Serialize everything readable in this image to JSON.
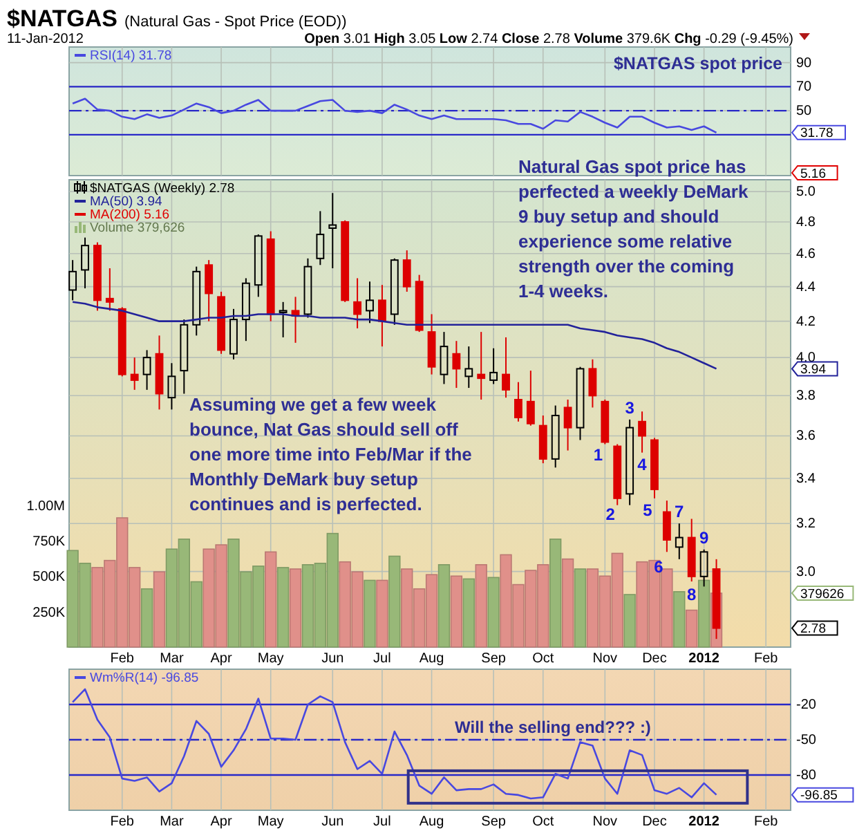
{
  "chart_data": [
    {
      "type": "line",
      "title": "$NATGAS",
      "subtitle": "(Natural Gas - Spot Price (EOD))",
      "annotations": [
        "11-Jan-2012",
        "Open 3.01 High 3.05 Low 2.74 Close 2.78 Volume 379.6K Chg -0.29 (-9.45%)",
        "$NATGAS spot price",
        "31.78"
      ],
      "x": [
        "2011-01-10",
        "2011-01-17",
        "2011-01-24",
        "2011-01-31",
        "2011-02-07",
        "2011-02-14",
        "2011-02-21",
        "2011-02-28",
        "2011-03-07",
        "2011-03-14",
        "2011-03-21",
        "2011-03-28",
        "2011-04-04",
        "2011-04-11",
        "2011-04-18",
        "2011-04-25",
        "2011-05-02",
        "2011-05-09",
        "2011-05-16",
        "2011-05-23",
        "2011-05-30",
        "2011-06-06",
        "2011-06-13",
        "2011-06-20",
        "2011-06-27",
        "2011-07-04",
        "2011-07-11",
        "2011-07-18",
        "2011-07-25",
        "2011-08-01",
        "2011-08-08",
        "2011-08-15",
        "2011-08-22",
        "2011-08-29",
        "2011-09-05",
        "2011-09-12",
        "2011-09-19",
        "2011-09-26",
        "2011-10-03",
        "2011-10-10",
        "2011-10-17",
        "2011-10-24",
        "2011-10-31",
        "2011-11-07",
        "2011-11-14",
        "2011-11-21",
        "2011-11-28",
        "2011-12-05",
        "2011-12-12",
        "2011-12-19",
        "2011-12-26",
        "2012-01-02",
        "2012-01-09"
      ],
      "xlim": [
        "2011-01-08",
        "2012-02-20"
      ],
      "xticks": [
        {
          "value": "2011-02-07",
          "label": null
        },
        {
          "value": "2011-03-07",
          "label": null
        },
        {
          "value": "2011-04-04",
          "label": null
        },
        {
          "value": "2011-05-02",
          "label": null
        },
        {
          "value": "2011-06-06",
          "label": null
        },
        {
          "value": "2011-07-04",
          "label": null
        },
        {
          "value": "2011-08-01",
          "label": null
        },
        {
          "value": "2011-09-05",
          "label": null
        },
        {
          "value": "2011-10-03",
          "label": null
        },
        {
          "value": "2011-11-07",
          "label": null
        },
        {
          "value": "2011-12-05",
          "label": null
        },
        {
          "value": "2012-01-02",
          "label": null
        },
        {
          "value": "2012-02-06",
          "label": null
        }
      ],
      "tick_labels": "y",
      "ylim": [
        -4,
        103
      ],
      "yticks": [
        50,
        70,
        90
      ],
      "grid": true,
      "legend": "top left",
      "ref_lines": [
        {
          "axis": "y",
          "value": 70,
          "color": "#2828c8",
          "line_style": "solid"
        },
        {
          "axis": "y",
          "value": 50,
          "color": "#2828c8",
          "line_style": "dashed"
        },
        {
          "axis": "y",
          "value": 30,
          "color": "#2828c8",
          "line_style": "solid"
        }
      ],
      "series": [
        {
          "name": "RSI(14) 31.78",
          "color": "#4848e0",
          "values": [
            56,
            60,
            51,
            50,
            45,
            43,
            47,
            44,
            46,
            51,
            56,
            53,
            48,
            50,
            55,
            59,
            50,
            50,
            50,
            54,
            58,
            59,
            50,
            49,
            50,
            48,
            55,
            51,
            46,
            43,
            46,
            43,
            43,
            43,
            43,
            42,
            39,
            39,
            35,
            42,
            41,
            49,
            45,
            40,
            36,
            45,
            45,
            40,
            36,
            37,
            34,
            37,
            31.78
          ]
        }
      ]
    },
    {
      "type": "candlestick",
      "log": "y",
      "annotations": [
        "Natural Gas spot price has\nperfected a weekly DeMark\n9 buy setup and should\nexperience some relative\nstrength over the coming\n1-4 weeks.",
        "Assuming we get a few week\nbounce, Nat Gas should sell off\none more time into Feb/Mar if the\nMonthly DeMark buy setup\ncontinues and is perfected.",
        "5.16",
        "2.78",
        "3.94",
        "379626",
        "1",
        "2",
        "3",
        "4",
        "5",
        "6",
        "7",
        "8",
        "9"
      ],
      "x": [
        "2011-01-10",
        "2011-01-17",
        "2011-01-24",
        "2011-01-31",
        "2011-02-07",
        "2011-02-14",
        "2011-02-21",
        "2011-02-28",
        "2011-03-07",
        "2011-03-14",
        "2011-03-21",
        "2011-03-28",
        "2011-04-04",
        "2011-04-11",
        "2011-04-18",
        "2011-04-25",
        "2011-05-02",
        "2011-05-09",
        "2011-05-16",
        "2011-05-23",
        "2011-05-30",
        "2011-06-06",
        "2011-06-13",
        "2011-06-20",
        "2011-06-27",
        "2011-07-04",
        "2011-07-11",
        "2011-07-18",
        "2011-07-25",
        "2011-08-01",
        "2011-08-08",
        "2011-08-15",
        "2011-08-22",
        "2011-08-29",
        "2011-09-05",
        "2011-09-12",
        "2011-09-19",
        "2011-09-26",
        "2011-10-03",
        "2011-10-10",
        "2011-10-17",
        "2011-10-24",
        "2011-10-31",
        "2011-11-07",
        "2011-11-14",
        "2011-11-21",
        "2011-11-28",
        "2011-12-05",
        "2011-12-12",
        "2011-12-19",
        "2011-12-26",
        "2012-01-02",
        "2012-01-09"
      ],
      "xlim": [
        "2011-01-08",
        "2012-02-20"
      ],
      "xticks": [
        {
          "value": "2011-02-07",
          "label": "Feb"
        },
        {
          "value": "2011-03-07",
          "label": "Mar"
        },
        {
          "value": "2011-04-04",
          "label": "Apr"
        },
        {
          "value": "2011-05-02",
          "label": "May"
        },
        {
          "value": "2011-06-06",
          "label": "Jun"
        },
        {
          "value": "2011-07-04",
          "label": "Jul"
        },
        {
          "value": "2011-08-01",
          "label": "Aug"
        },
        {
          "value": "2011-09-05",
          "label": "Sep"
        },
        {
          "value": "2011-10-03",
          "label": "Oct"
        },
        {
          "value": "2011-11-07",
          "label": "Nov"
        },
        {
          "value": "2011-12-05",
          "label": "Dec"
        },
        {
          "value": "2012-01-02",
          "label": "2012"
        },
        {
          "value": "2012-02-06",
          "label": "Feb"
        }
      ],
      "ylim": [
        2.71,
        5.08
      ],
      "yticks": [
        {
          "value": 3,
          "label": "3.0"
        },
        3.2,
        3.4,
        3.6,
        3.8,
        {
          "value": 4,
          "label": "4.0"
        },
        4.2,
        4.4,
        4.6,
        4.8,
        {
          "value": 5,
          "label": "5.0"
        }
      ],
      "y2lim": [
        0,
        3290000
      ],
      "y2ticks": [
        {
          "value": 250000,
          "label": "250K"
        },
        {
          "value": 500000,
          "label": "500K"
        },
        {
          "value": 750000,
          "label": "750K"
        },
        {
          "value": 1000000,
          "label": "1.00M"
        }
      ],
      "grid": true,
      "legend": "top left",
      "series": [
        {
          "name": "$NATGAS (Weekly) 2.78",
          "color": "#000000",
          "colors": [
            "#000000",
            "#000000",
            "#dd0000",
            "#dd0000",
            "#dd0000",
            "#dd0000",
            "#000000",
            "#dd0000",
            "#000000",
            "#000000",
            "#000000",
            "#dd0000",
            "#dd0000",
            "#000000",
            "#000000",
            "#000000",
            "#dd0000",
            "#000000",
            "#dd0000",
            "#000000",
            "#000000",
            "#000000",
            "#dd0000",
            "#dd0000",
            "#000000",
            "#dd0000",
            "#000000",
            "#dd0000",
            "#dd0000",
            "#dd0000",
            "#000000",
            "#dd0000",
            "#000000",
            "#dd0000",
            "#000000",
            "#dd0000",
            "#dd0000",
            "#dd0000",
            "#dd0000",
            "#000000",
            "#dd0000",
            "#000000",
            "#dd0000",
            "#dd0000",
            "#dd0000",
            "#000000",
            "#dd0000",
            "#dd0000",
            "#dd0000",
            "#000000",
            "#dd0000",
            "#000000",
            "#dd0000"
          ],
          "ohlc": [
            [
              4.38,
              4.56,
              4.32,
              4.49
            ],
            [
              4.5,
              4.7,
              4.39,
              4.65
            ],
            [
              4.65,
              4.67,
              4.26,
              4.32
            ],
            [
              4.33,
              4.51,
              4.26,
              4.31
            ],
            [
              4.27,
              4.28,
              3.9,
              3.91
            ],
            [
              3.91,
              4.0,
              3.83,
              3.88
            ],
            [
              3.91,
              4.04,
              3.83,
              4.0
            ],
            [
              4.02,
              4.12,
              3.73,
              3.81
            ],
            [
              3.79,
              3.97,
              3.73,
              3.9
            ],
            [
              3.93,
              4.21,
              3.81,
              4.18
            ],
            [
              4.18,
              4.52,
              4.12,
              4.49
            ],
            [
              4.53,
              4.56,
              4.2,
              4.36
            ],
            [
              4.34,
              4.37,
              4.02,
              4.04
            ],
            [
              4.02,
              4.27,
              3.99,
              4.21
            ],
            [
              4.21,
              4.45,
              4.09,
              4.42
            ],
            [
              4.41,
              4.72,
              4.34,
              4.71
            ],
            [
              4.69,
              4.74,
              4.2,
              4.24
            ],
            [
              4.25,
              4.31,
              4.11,
              4.26
            ],
            [
              4.26,
              4.34,
              4.08,
              4.23
            ],
            [
              4.24,
              4.57,
              4.22,
              4.52
            ],
            [
              4.57,
              4.87,
              4.53,
              4.72
            ],
            [
              4.76,
              4.99,
              4.51,
              4.78
            ],
            [
              4.8,
              4.81,
              4.31,
              4.32
            ],
            [
              4.31,
              4.45,
              4.16,
              4.24
            ],
            [
              4.26,
              4.43,
              4.19,
              4.32
            ],
            [
              4.32,
              4.41,
              4.06,
              4.2
            ],
            [
              4.24,
              4.57,
              4.18,
              4.56
            ],
            [
              4.56,
              4.62,
              4.37,
              4.4
            ],
            [
              4.43,
              4.47,
              4.14,
              4.15
            ],
            [
              4.14,
              4.24,
              3.91,
              3.95
            ],
            [
              3.91,
              4.14,
              3.86,
              4.06
            ],
            [
              4.02,
              4.09,
              3.84,
              3.94
            ],
            [
              3.9,
              4.06,
              3.84,
              3.94
            ],
            [
              3.91,
              4.14,
              3.78,
              3.89
            ],
            [
              3.88,
              4.05,
              3.86,
              3.92
            ],
            [
              3.91,
              4.11,
              3.79,
              3.83
            ],
            [
              3.78,
              3.87,
              3.67,
              3.69
            ],
            [
              3.77,
              3.93,
              3.65,
              3.66
            ],
            [
              3.65,
              3.7,
              3.47,
              3.49
            ],
            [
              3.49,
              3.75,
              3.45,
              3.7
            ],
            [
              3.74,
              3.78,
              3.53,
              3.64
            ],
            [
              3.64,
              3.95,
              3.58,
              3.94
            ],
            [
              3.94,
              3.99,
              3.74,
              3.8
            ],
            [
              3.77,
              3.78,
              3.56,
              3.57
            ],
            [
              3.55,
              3.56,
              3.28,
              3.31
            ],
            [
              3.33,
              3.68,
              3.28,
              3.64
            ],
            [
              3.67,
              3.72,
              3.52,
              3.6
            ],
            [
              3.58,
              3.59,
              3.31,
              3.35
            ],
            [
              3.25,
              3.3,
              3.08,
              3.13
            ],
            [
              3.1,
              3.2,
              3.05,
              3.14
            ],
            [
              3.14,
              3.22,
              2.96,
              2.98
            ],
            [
              2.98,
              3.09,
              2.94,
              3.08
            ],
            [
              3.01,
              3.05,
              2.74,
              2.78
            ]
          ]
        },
        {
          "type": "line",
          "name": "MA(50) 3.94",
          "color": "#22229a",
          "values": [
            4.31,
            4.3,
            4.28,
            4.27,
            4.26,
            4.24,
            4.22,
            4.2,
            4.2,
            4.2,
            4.21,
            4.22,
            4.22,
            4.23,
            4.23,
            4.24,
            4.24,
            4.24,
            4.23,
            4.23,
            4.22,
            4.22,
            4.22,
            4.21,
            4.21,
            4.2,
            4.19,
            4.18,
            4.18,
            4.18,
            4.18,
            4.18,
            4.18,
            4.18,
            4.18,
            4.18,
            4.18,
            4.18,
            4.18,
            4.18,
            4.18,
            4.16,
            4.15,
            4.14,
            4.12,
            4.11,
            4.1,
            4.08,
            4.05,
            4.03,
            4.0,
            3.97,
            3.94
          ]
        },
        {
          "type": "line",
          "name": "MA(200) 5.16",
          "color": "#e00000",
          "values": [
            null,
            null,
            null,
            null,
            null,
            null,
            null,
            null,
            null,
            null,
            null,
            null,
            null,
            null,
            null,
            null,
            null,
            null,
            null,
            null,
            null,
            null,
            null,
            null,
            null,
            null,
            null,
            null,
            null,
            null,
            null,
            null,
            null,
            null,
            null,
            null,
            null,
            null,
            null,
            null,
            null,
            null,
            null,
            null,
            null,
            null,
            null,
            null,
            null,
            null,
            null,
            null,
            null
          ]
        },
        {
          "type": "bar",
          "axis": "y2",
          "name": "Volume 379,626",
          "color": "#98b878",
          "colors": [
            "#98b878",
            "#98b878",
            "#e0908a",
            "#e0908a",
            "#e0908a",
            "#e0908a",
            "#98b878",
            "#e0908a",
            "#98b878",
            "#98b878",
            "#98b878",
            "#e0908a",
            "#e0908a",
            "#98b878",
            "#98b878",
            "#98b878",
            "#e0908a",
            "#98b878",
            "#e0908a",
            "#98b878",
            "#98b878",
            "#98b878",
            "#e0908a",
            "#e0908a",
            "#98b878",
            "#e0908a",
            "#98b878",
            "#e0908a",
            "#e0908a",
            "#e0908a",
            "#98b878",
            "#e0908a",
            "#98b878",
            "#e0908a",
            "#98b878",
            "#e0908a",
            "#e0908a",
            "#e0908a",
            "#e0908a",
            "#98b878",
            "#e0908a",
            "#98b878",
            "#e0908a",
            "#e0908a",
            "#e0908a",
            "#98b878",
            "#e0908a",
            "#e0908a",
            "#e0908a",
            "#98b878",
            "#e0908a",
            "#98b878",
            "#e0908a"
          ],
          "values": [
            680000,
            590000,
            560000,
            610000,
            910000,
            560000,
            410000,
            530000,
            690000,
            760000,
            460000,
            690000,
            720000,
            760000,
            530000,
            570000,
            670000,
            560000,
            550000,
            580000,
            590000,
            800000,
            600000,
            530000,
            470000,
            470000,
            640000,
            550000,
            410000,
            510000,
            580000,
            500000,
            480000,
            580000,
            490000,
            650000,
            440000,
            540000,
            580000,
            760000,
            620000,
            550000,
            550000,
            500000,
            660000,
            370000,
            600000,
            610000,
            550000,
            390000,
            260000,
            470000,
            379626
          ]
        }
      ]
    },
    {
      "type": "line",
      "annotations": [
        "Will the selling end??? :)",
        "-96.85"
      ],
      "x": [
        "2011-01-10",
        "2011-01-17",
        "2011-01-24",
        "2011-01-31",
        "2011-02-07",
        "2011-02-14",
        "2011-02-21",
        "2011-02-28",
        "2011-03-07",
        "2011-03-14",
        "2011-03-21",
        "2011-03-28",
        "2011-04-04",
        "2011-04-11",
        "2011-04-18",
        "2011-04-25",
        "2011-05-02",
        "2011-05-09",
        "2011-05-16",
        "2011-05-23",
        "2011-05-30",
        "2011-06-06",
        "2011-06-13",
        "2011-06-20",
        "2011-06-27",
        "2011-07-04",
        "2011-07-11",
        "2011-07-18",
        "2011-07-25",
        "2011-08-01",
        "2011-08-08",
        "2011-08-15",
        "2011-08-22",
        "2011-08-29",
        "2011-09-05",
        "2011-09-12",
        "2011-09-19",
        "2011-09-26",
        "2011-10-03",
        "2011-10-10",
        "2011-10-17",
        "2011-10-24",
        "2011-10-31",
        "2011-11-07",
        "2011-11-14",
        "2011-11-21",
        "2011-11-28",
        "2011-12-05",
        "2011-12-12",
        "2011-12-19",
        "2011-12-26",
        "2012-01-02",
        "2012-01-09"
      ],
      "xlim": [
        "2011-01-08",
        "2012-02-20"
      ],
      "xticks": [
        {
          "value": "2011-02-07",
          "label": "Feb"
        },
        {
          "value": "2011-03-07",
          "label": "Mar"
        },
        {
          "value": "2011-04-04",
          "label": "Apr"
        },
        {
          "value": "2011-05-02",
          "label": "May"
        },
        {
          "value": "2011-06-06",
          "label": "Jun"
        },
        {
          "value": "2011-07-04",
          "label": "Jul"
        },
        {
          "value": "2011-08-01",
          "label": "Aug"
        },
        {
          "value": "2011-09-05",
          "label": "Sep"
        },
        {
          "value": "2011-10-03",
          "label": "Oct"
        },
        {
          "value": "2011-11-07",
          "label": "Nov"
        },
        {
          "value": "2011-12-05",
          "label": "Dec"
        },
        {
          "value": "2012-01-02",
          "label": "2012"
        },
        {
          "value": "2012-02-06",
          "label": "Feb"
        }
      ],
      "ylim": [
        -110,
        10
      ],
      "yticks": [
        -20,
        -50,
        -80
      ],
      "grid": true,
      "legend": "top left",
      "ref_lines": [
        {
          "axis": "y",
          "value": -20,
          "color": "#2828c8",
          "line_style": "solid"
        },
        {
          "axis": "y",
          "value": -50,
          "color": "#2828c8",
          "line_style": "dashed"
        },
        {
          "axis": "y",
          "value": -80,
          "color": "#2828c8",
          "line_style": "solid"
        }
      ],
      "series": [
        {
          "name": "Wm%R(14) -96.85",
          "color": "#4848e0",
          "values": [
            -18,
            -7,
            -33,
            -48,
            -83,
            -85,
            -82,
            -94,
            -87,
            -64,
            -34,
            -45,
            -73,
            -59,
            -41,
            -15,
            -49,
            -49,
            -50,
            -20,
            -13,
            -18,
            -52,
            -75,
            -68,
            -79,
            -43,
            -63,
            -89,
            -96,
            -82,
            -93,
            -92,
            -92,
            -88,
            -96,
            -97,
            -100,
            -99,
            -79,
            -83,
            -52,
            -55,
            -83,
            -96,
            -59,
            -63,
            -93,
            -96,
            -91,
            -99,
            -87,
            -96.85
          ]
        }
      ]
    }
  ]
}
